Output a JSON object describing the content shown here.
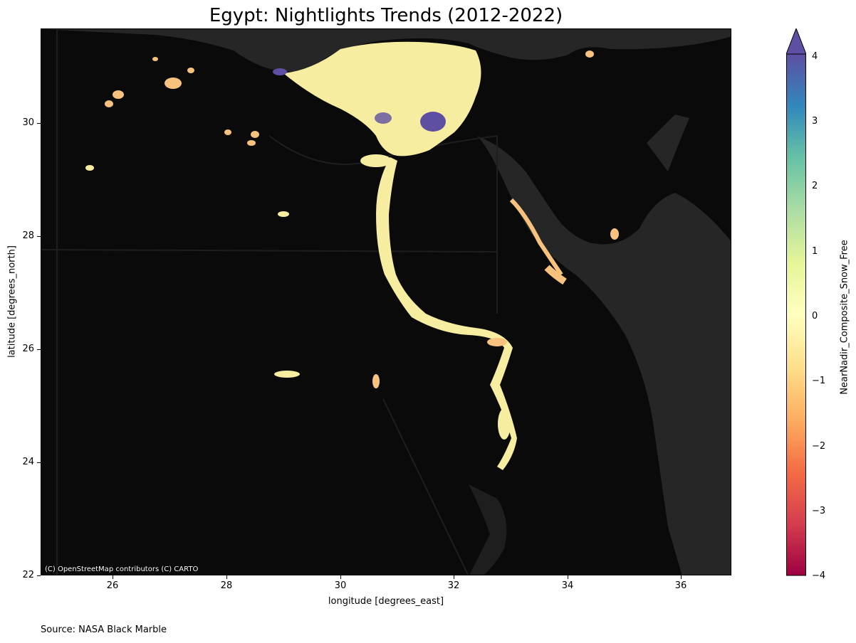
{
  "title": "Egypt: Nightlights Trends (2012-2022)",
  "attribution": "(C) OpenStreetMap contributors (C) CARTO",
  "source": "Source: NASA Black Marble",
  "x_axis": {
    "label": "longitude [degrees_east]",
    "ticks": [
      "26",
      "28",
      "30",
      "32",
      "34",
      "36"
    ]
  },
  "y_axis": {
    "label": "latitude [degrees_north]",
    "ticks": [
      "30",
      "28",
      "26",
      "24",
      "22"
    ]
  },
  "colorbar": {
    "label": "NearNadir_Composite_Snow_Free",
    "ticks": [
      "4",
      "3",
      "2",
      "1",
      "0",
      "−1",
      "−2",
      "−3",
      "−4"
    ],
    "colormap": [
      "#9e0142",
      "#d53e4f",
      "#f46d43",
      "#fdae61",
      "#fee08b",
      "#ffffbf",
      "#e6f598",
      "#abdda4",
      "#66c2a5",
      "#3288bd",
      "#5e4fa2"
    ],
    "range": [
      -4,
      4
    ],
    "extend": "max"
  },
  "colors": {
    "land": "#0a0a0a",
    "sea": "#262626",
    "lights": "#f6eda0",
    "lights_warm": "#f7c27e",
    "lights_blue": "#5e4fa2"
  }
}
